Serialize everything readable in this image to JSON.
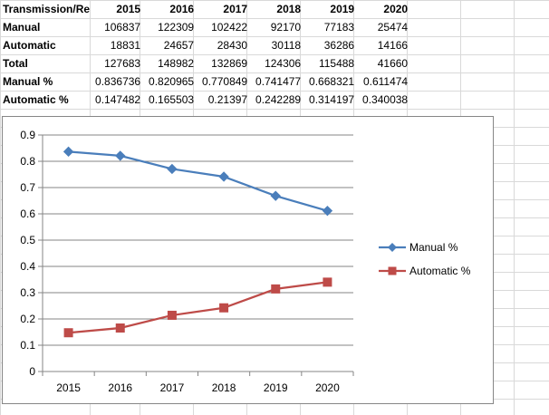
{
  "table": {
    "header": [
      "Transmission/Re",
      "2015",
      "2016",
      "2017",
      "2018",
      "2019",
      "2020"
    ],
    "rows": [
      [
        "Manual",
        "106837",
        "122309",
        "102422",
        "92170",
        "77183",
        "25474"
      ],
      [
        "Automatic",
        "18831",
        "24657",
        "28430",
        "30118",
        "36286",
        "14166"
      ],
      [
        "Total",
        "127683",
        "148982",
        "132869",
        "124306",
        "115488",
        "41660"
      ],
      [
        "Manual %",
        "0.836736",
        "0.820965",
        "0.770849",
        "0.741477",
        "0.668321",
        "0.611474"
      ],
      [
        "Automatic %",
        "0.147482",
        "0.165503",
        "0.21397",
        "0.242289",
        "0.314197",
        "0.340038"
      ]
    ]
  },
  "chart_data": {
    "type": "line",
    "x": [
      "2015",
      "2016",
      "2017",
      "2018",
      "2019",
      "2020"
    ],
    "series": [
      {
        "name": "Manual %",
        "values": [
          0.836736,
          0.820965,
          0.770849,
          0.741477,
          0.668321,
          0.611474
        ],
        "color": "#4a7ebb",
        "marker": "diamond"
      },
      {
        "name": "Automatic %",
        "values": [
          0.147482,
          0.165503,
          0.21397,
          0.242289,
          0.314197,
          0.340038
        ],
        "color": "#be4b48",
        "marker": "square"
      }
    ],
    "ylim": [
      0,
      0.9
    ],
    "yticks": [
      "0",
      "0.1",
      "0.2",
      "0.3",
      "0.4",
      "0.5",
      "0.6",
      "0.7",
      "0.8",
      "0.9"
    ],
    "grid": true,
    "legend": "right",
    "title": "",
    "xlabel": "",
    "ylabel": ""
  }
}
